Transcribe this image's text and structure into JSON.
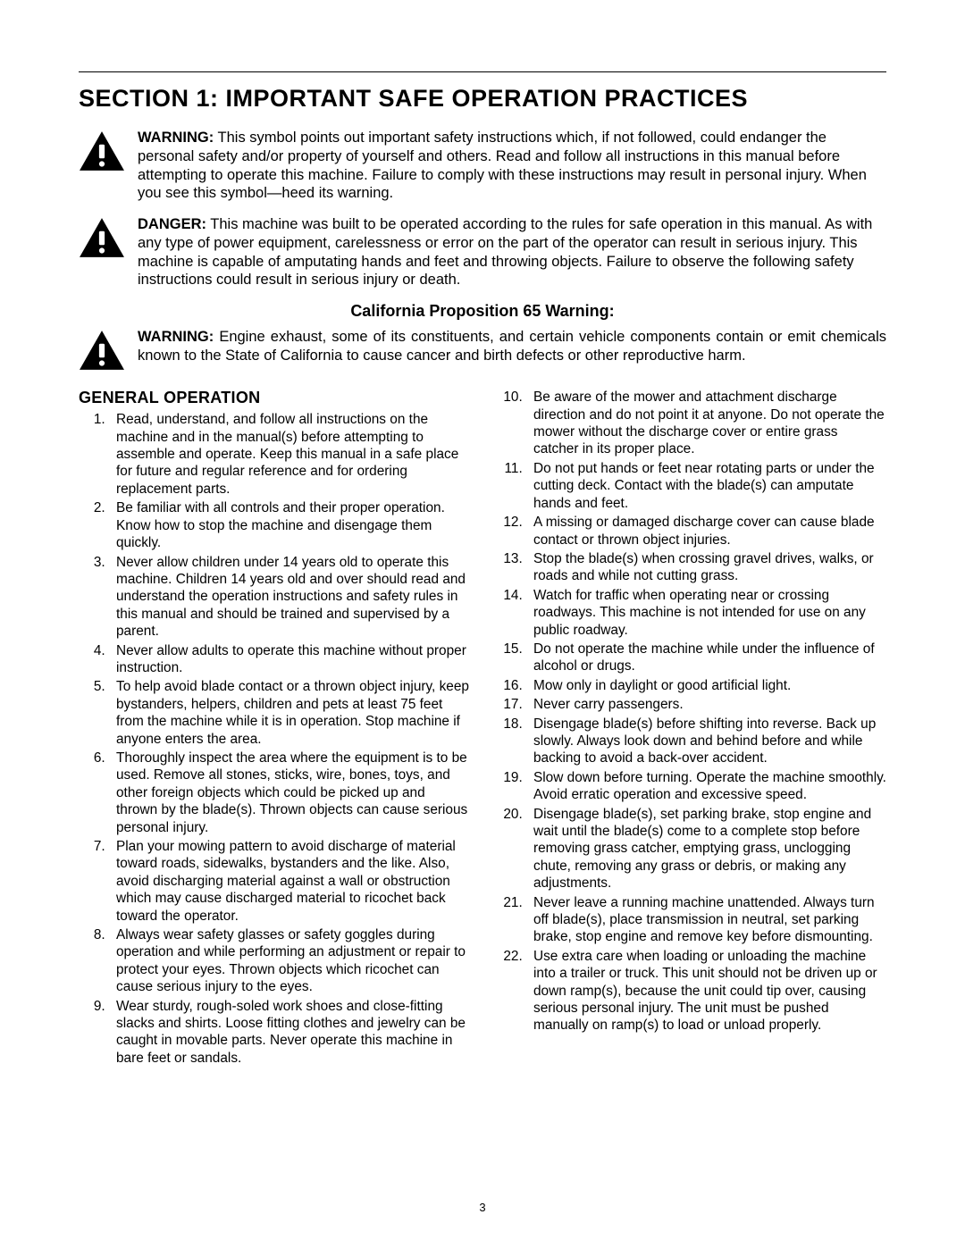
{
  "page": {
    "section_title": "SECTION 1:  IMPORTANT SAFE OPERATION PRACTICES",
    "page_number": "3"
  },
  "icon": {
    "fill": "#000000"
  },
  "warnings": [
    {
      "label": "WARNING:",
      "text": " This symbol points out important safety instructions which, if not followed, could endanger the personal safety and/or property of yourself and others. Read and follow all instructions in this manual before attempting to operate this machine. Failure to comply with these instructions may result in personal injury. When you see this symbol—heed its warning.",
      "justify": false
    },
    {
      "label": "DANGER:",
      "text": " This machine was built to be operated according to the rules for safe operation in this manual. As with any type of power equipment, carelessness or error on the part of the operator can result in serious injury. This machine is capable of amputating hands and feet and throwing objects. Failure to observe the following safety instructions could result in serious injury or death.",
      "justify": false
    }
  ],
  "ca_heading": "California Proposition 65 Warning:",
  "ca_warning": {
    "label": "WARNING:",
    "text": " Engine exhaust, some of its constituents, and certain vehicle components contain or emit chemicals known to the State of California to cause cancer and birth defects or other reproductive harm.",
    "justify": true
  },
  "general_heading": "GENERAL OPERATION",
  "rules": [
    "Read, understand, and follow all instructions on the machine and in the manual(s) before attempting to assemble and operate. Keep this manual in a safe place for future and regular reference and for ordering replacement parts.",
    "Be familiar with all controls and their proper operation. Know how to stop the machine and disengage them quickly.",
    "Never allow children under 14 years old to operate this machine. Children 14 years old and over should read and understand the operation instructions and safety rules in this manual and should be trained and supervised by a parent.",
    "Never allow adults to operate this machine without proper instruction.",
    "To help avoid blade contact or a thrown object injury, keep bystanders, helpers, children and pets at least 75 feet from the machine while it is in operation. Stop machine if anyone enters the area.",
    "Thoroughly inspect the area where the equipment is to be used. Remove all stones, sticks, wire, bones, toys, and other foreign objects which could be picked up and thrown by the blade(s). Thrown objects can cause serious personal injury.",
    "Plan your mowing pattern to avoid discharge of material toward roads, sidewalks, bystanders and the like. Also, avoid discharging material against a wall or obstruction which may cause discharged material to ricochet back toward the operator.",
    "Always wear safety glasses or safety goggles during operation and while performing an adjustment or repair to protect your eyes. Thrown objects which ricochet can cause serious injury to the eyes.",
    "Wear sturdy, rough-soled work shoes and close-fitting slacks and shirts. Loose fitting clothes and jewelry can be caught in movable parts. Never operate this machine in bare feet or sandals.",
    "Be aware of the mower and attachment discharge direction and do not point it at anyone. Do not operate the mower without the discharge cover or entire grass catcher in its proper place.",
    "Do not put hands or feet near rotating parts or under the cutting deck. Contact with the blade(s) can amputate hands and feet.",
    "A missing or damaged discharge cover can cause blade contact or thrown object injuries.",
    "Stop the blade(s) when crossing gravel drives, walks, or roads and while not cutting grass.",
    "Watch for traffic when operating near or crossing roadways. This machine is not intended for use on any public roadway.",
    "Do not operate the machine while under the influence of alcohol or drugs.",
    "Mow only in daylight or good artificial light.",
    "Never carry passengers.",
    "Disengage blade(s) before shifting into reverse. Back up slowly. Always look down and behind before and while backing to avoid a back-over accident.",
    "Slow down before turning. Operate the machine smoothly. Avoid erratic operation and excessive speed.",
    "Disengage blade(s), set parking brake, stop engine and wait until the blade(s) come to a complete stop before removing grass catcher, emptying grass, unclogging chute, removing any grass or debris, or making any adjustments.",
    "Never leave a running machine unattended. Always turn off blade(s), place transmission in neutral, set parking brake, stop engine and remove key before dismounting.",
    "Use extra care when loading or unloading the machine into a trailer or truck. This unit should not be driven up or down ramp(s), because the unit could tip over, causing serious personal injury. The unit must be pushed manually on ramp(s) to load or unload properly."
  ]
}
